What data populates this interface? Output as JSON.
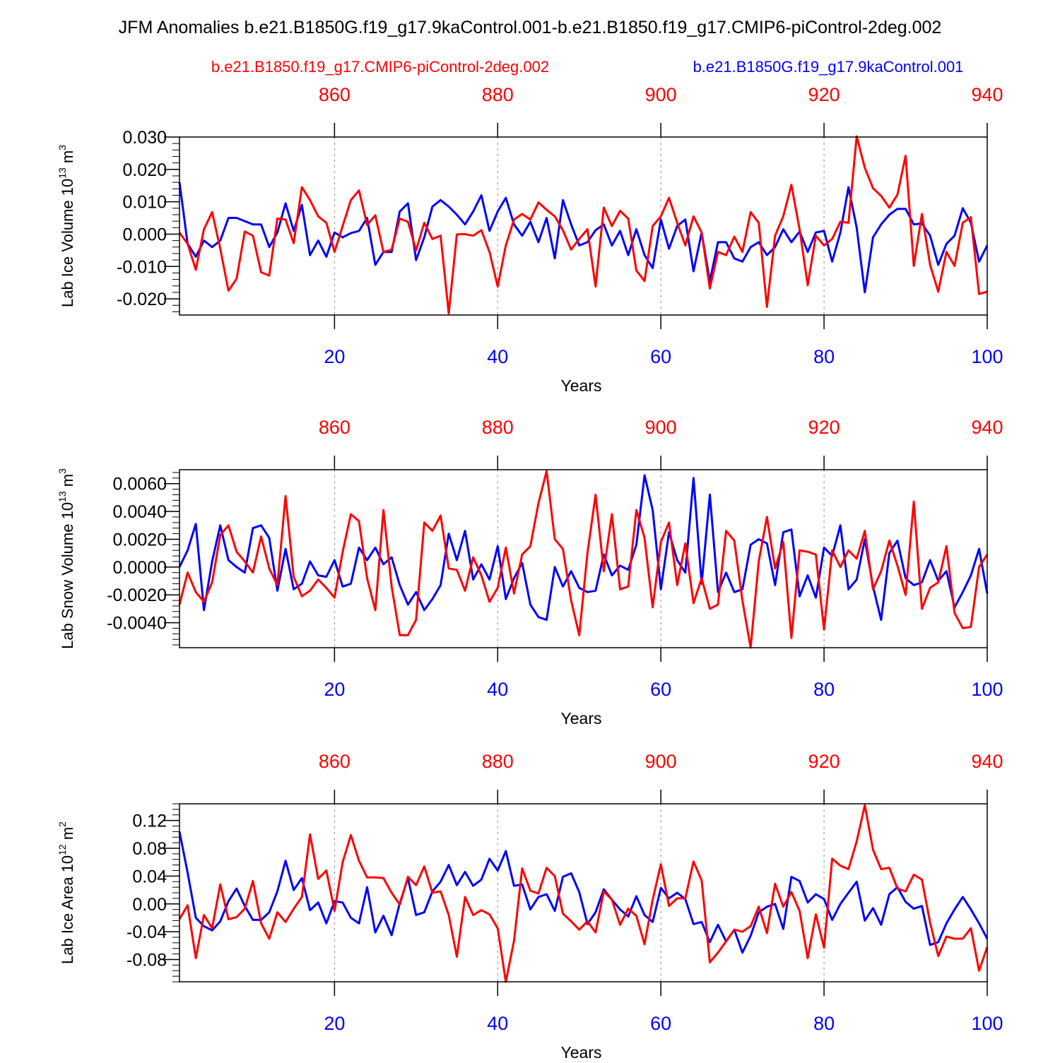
{
  "main_title": "JFM Anomalies b.e21.B1850G.f19_g17.9kaControl.001-b.e21.B1850.f19_g17.CMIP6-piControl-2deg.002",
  "legend": {
    "red_label": "b.e21.B1850.f19_g17.CMIP6-piControl-2deg.002",
    "blue_label": "b.e21.B1850G.f19_g17.9kaControl.001"
  },
  "colors": {
    "red": "#ff0000",
    "blue": "#0000ff",
    "axis": "#000000",
    "grid": "#888888"
  },
  "chart_data": [
    {
      "type": "line",
      "ylabel": "Lab Ice Volume 10",
      "ylabel_sup": "13",
      "ylabel_unit": " m",
      "ylabel_unit_sup": "3",
      "xlabel": "Years",
      "xlim": [
        1,
        100
      ],
      "ylim": [
        -0.025,
        0.03
      ],
      "yticks": [
        -0.02,
        -0.01,
        0.0,
        0.01,
        0.02,
        0.03
      ],
      "ytick_labels": [
        "-0.020",
        "-0.010",
        "0.000",
        "0.010",
        "0.020",
        "0.030"
      ],
      "xticks": [
        20,
        40,
        60,
        80,
        100
      ],
      "xtick_labels": [
        "20",
        "40",
        "60",
        "80",
        "100"
      ],
      "top_xticks": [
        860,
        880,
        900,
        920,
        940
      ],
      "top_xtick_labels": [
        "860",
        "880",
        "900",
        "920",
        "940"
      ],
      "series": [
        {
          "name": "b.e21.B1850G.f19_g17.9kaControl.001",
          "color": "blue",
          "values": [
            0.016,
            -0.003,
            -0.007,
            -0.002,
            -0.004,
            -0.002,
            0.005,
            0.005,
            0.004,
            0.003,
            0.003,
            -0.004,
            0.0005,
            0.0095,
            0.001,
            0.009,
            -0.0065,
            -0.002,
            -0.007,
            0.0005,
            -0.001,
            0.0003,
            0.001,
            0.005,
            -0.0095,
            -0.0055,
            -0.0055,
            0.007,
            0.0095,
            -0.008,
            -0.001,
            0.0085,
            0.0105,
            0.0085,
            0.006,
            0.003,
            0.007,
            0.012,
            0.001,
            0.007,
            0.0112,
            0.003,
            -0.0005,
            0.0038,
            -0.0025,
            0.005,
            -0.0075,
            0.0105,
            0.003,
            -0.0035,
            -0.0025,
            0.0012,
            0.003,
            -0.0035,
            0.001,
            -0.0065,
            0.0015,
            -0.0065,
            -0.0105,
            0.0045,
            -0.0045,
            0.0025,
            0.0045,
            -0.0115,
            0.0005,
            -0.0145,
            -0.0025,
            -0.0025,
            -0.0075,
            -0.0085,
            -0.004,
            -0.0025,
            -0.0065,
            -0.004,
            0.0015,
            -0.0025,
            0.0008,
            -0.0055,
            0.0005,
            0.001,
            -0.0085,
            0.0005,
            0.0145,
            0.002,
            -0.018,
            -0.001,
            0.003,
            0.006,
            0.0078,
            0.0078,
            0.003,
            0.0033,
            -0.0005,
            -0.0095,
            -0.003,
            -0.0005,
            0.008,
            0.0035,
            -0.0085,
            -0.0035
          ]
        },
        {
          "name": "b.e21.B1850.f19_g17.CMIP6-piControl-2deg.002",
          "color": "red",
          "values": [
            0.0005,
            -0.003,
            -0.011,
            0.0015,
            0.0068,
            -0.0045,
            -0.0175,
            -0.0138,
            0.0008,
            -0.0005,
            -0.0118,
            -0.0128,
            0.0048,
            0.0045,
            -0.0028,
            0.0145,
            0.0105,
            0.0055,
            0.0035,
            -0.0055,
            0.0025,
            0.0105,
            0.0135,
            0.0028,
            0.0058,
            -0.0055,
            -0.0048,
            0.0048,
            0.0038,
            -0.005,
            0.0035,
            -0.0015,
            -0.0005,
            -0.0245,
            -0.0001,
            0.0,
            -0.0005,
            0.0012,
            -0.0055,
            -0.0162,
            -0.0035,
            0.0045,
            0.0062,
            0.0045,
            0.0098,
            0.0075,
            0.0055,
            0.0012,
            -0.0048,
            -0.0015,
            0.0015,
            -0.0162,
            0.0082,
            0.0025,
            0.0072,
            0.0048,
            -0.0112,
            -0.0145,
            0.0025,
            0.0055,
            0.0112,
            0.0035,
            -0.0035,
            0.0055,
            0.0005,
            -0.0168,
            -0.0055,
            -0.0065,
            -0.0008,
            -0.0055,
            0.0068,
            0.0035,
            -0.0225,
            -0.0005,
            0.0055,
            0.0152,
            0.0015,
            -0.0158,
            -0.0005,
            -0.0035,
            -0.0015,
            0.0038,
            0.0035,
            0.0302,
            0.0205,
            0.0142,
            0.0118,
            0.0082,
            0.0122,
            0.0242,
            -0.0098,
            0.0062,
            -0.0095,
            -0.0178,
            -0.0055,
            -0.0098,
            0.0035,
            0.0052,
            -0.0185,
            -0.0178
          ]
        }
      ]
    },
    {
      "type": "line",
      "ylabel": "Lab Snow Volume 10",
      "ylabel_sup": "13",
      "ylabel_unit": " m",
      "ylabel_unit_sup": "3",
      "xlabel": "Years",
      "xlim": [
        1,
        100
      ],
      "ylim": [
        -0.0058,
        0.007
      ],
      "yticks": [
        -0.004,
        -0.002,
        0.0,
        0.002,
        0.004,
        0.006
      ],
      "ytick_labels": [
        "-0.0040",
        "-0.0020",
        "0.0000",
        "0.0020",
        "0.0040",
        "0.0060"
      ],
      "xticks": [
        20,
        40,
        60,
        80,
        100
      ],
      "xtick_labels": [
        "20",
        "40",
        "60",
        "80",
        "100"
      ],
      "top_xticks": [
        860,
        880,
        900,
        920,
        940
      ],
      "top_xtick_labels": [
        "860",
        "880",
        "900",
        "920",
        "940"
      ],
      "series": [
        {
          "name": "b.e21.B1850G.f19_g17.9kaControl.001",
          "color": "blue",
          "values": [
            0.0,
            0.0012,
            0.0031,
            -0.0031,
            0.0004,
            0.003,
            0.0005,
            0.0,
            -0.0004,
            0.0028,
            0.003,
            0.0021,
            -0.0017,
            0.0013,
            -0.0016,
            -0.0012,
            0.0004,
            -0.0006,
            -0.0007,
            0.0005,
            -0.0014,
            -0.0012,
            0.0014,
            0.0005,
            0.0014,
            0.0002,
            0.0007,
            -0.0013,
            -0.0027,
            -0.0018,
            -0.0031,
            -0.0023,
            -0.0013,
            0.0024,
            0.0005,
            0.0026,
            -0.0009,
            0.0002,
            -0.0009,
            0.0015,
            -0.0023,
            -0.0008,
            0.0003,
            -0.0027,
            -0.0036,
            -0.0038,
            0.0,
            -0.0014,
            -0.0003,
            -0.0015,
            -0.0018,
            -0.0017,
            0.0009,
            -0.0006,
            0.0001,
            -0.0002,
            0.0016,
            0.0066,
            0.0041,
            -0.0016,
            0.0025,
            0.0005,
            -0.0004,
            0.0064,
            -0.0012,
            0.0052,
            -0.0018,
            -0.0004,
            -0.0018,
            -0.0016,
            0.0016,
            0.002,
            0.0017,
            -0.0013,
            0.0025,
            0.0027,
            -0.0021,
            -0.0006,
            -0.0022,
            0.0014,
            0.0008,
            0.003,
            -0.0016,
            -0.0009,
            0.002,
            -0.0014,
            -0.0038,
            0.001,
            0.0019,
            -0.0008,
            -0.0013,
            -0.0011,
            0.0005,
            -0.001,
            -0.0003,
            -0.0029,
            -0.0018,
            -0.0006,
            0.0013,
            -0.0019
          ]
        },
        {
          "name": "b.e21.B1850.f19_g17.CMIP6-piControl-2deg.002",
          "color": "red",
          "values": [
            -0.0027,
            -0.0004,
            -0.0018,
            -0.0025,
            -0.0011,
            0.0023,
            0.003,
            0.0011,
            0.0004,
            -0.0004,
            0.0022,
            -0.0001,
            -0.0013,
            0.0051,
            -0.0007,
            -0.0021,
            -0.0017,
            -0.0009,
            -0.0015,
            -0.0022,
            0.0011,
            0.0038,
            0.0033,
            -0.0008,
            -0.0031,
            0.0041,
            -0.0014,
            -0.0049,
            -0.0049,
            -0.0038,
            0.0032,
            0.0026,
            0.0037,
            -0.0001,
            -0.0002,
            -0.0017,
            0.0007,
            -0.0006,
            -0.0025,
            -0.0015,
            0.0014,
            -0.0019,
            0.0009,
            0.0015,
            0.0046,
            0.0069,
            0.002,
            0.0013,
            -0.0024,
            -0.0049,
            0.001,
            0.0052,
            -0.0003,
            0.0038,
            -0.0016,
            -0.0014,
            0.0041,
            0.0021,
            -0.0029,
            0.0018,
            0.0032,
            -0.0013,
            0.0017,
            -0.0026,
            -0.0008,
            -0.003,
            -0.0027,
            0.0026,
            0.0019,
            -0.0024,
            -0.0058,
            0.0004,
            0.0036,
            -0.0001,
            0.0018,
            -0.0051,
            0.0012,
            0.0011,
            0.0009,
            -0.0045,
            0.0012,
            0.0,
            0.0012,
            0.0006,
            0.0026,
            -0.0016,
            -0.0003,
            0.0019,
            0.0001,
            -0.002,
            0.0047,
            -0.003,
            -0.0015,
            -0.0011,
            0.0015,
            -0.0033,
            -0.0044,
            -0.0043,
            0.0,
            0.0009
          ]
        }
      ]
    },
    {
      "type": "line",
      "ylabel": "Lab Ice Area 10",
      "ylabel_sup": "12",
      "ylabel_unit": " m",
      "ylabel_unit_sup": "2",
      "xlabel": "Years",
      "xlim": [
        1,
        100
      ],
      "ylim": [
        -0.112,
        0.144
      ],
      "yticks": [
        -0.08,
        -0.04,
        0.0,
        0.04,
        0.08,
        0.12
      ],
      "ytick_labels": [
        "-0.08",
        "-0.04",
        "0.00",
        "0.04",
        "0.08",
        "0.12"
      ],
      "xticks": [
        20,
        40,
        60,
        80,
        100
      ],
      "xtick_labels": [
        "20",
        "40",
        "60",
        "80",
        "100"
      ],
      "top_xticks": [
        860,
        880,
        900,
        920,
        940
      ],
      "top_xtick_labels": [
        "860",
        "880",
        "900",
        "920",
        "940"
      ],
      "series": [
        {
          "name": "b.e21.B1850G.f19_g17.9kaControl.001",
          "color": "blue",
          "values": [
            0.104,
            0.045,
            -0.02,
            -0.032,
            -0.038,
            -0.025,
            0.004,
            0.022,
            -0.003,
            -0.023,
            -0.023,
            -0.012,
            0.018,
            0.062,
            0.02,
            0.037,
            -0.009,
            0.002,
            -0.028,
            0.004,
            0.002,
            -0.02,
            -0.028,
            0.024,
            -0.041,
            -0.017,
            -0.045,
            0.001,
            0.037,
            -0.016,
            -0.012,
            0.018,
            0.032,
            0.056,
            0.027,
            0.046,
            0.026,
            0.035,
            0.065,
            0.048,
            0.076,
            0.026,
            0.028,
            -0.008,
            0.01,
            0.014,
            -0.01,
            0.039,
            0.044,
            0.017,
            -0.029,
            -0.012,
            0.021,
            0.006,
            -0.008,
            -0.018,
            0.011,
            -0.016,
            -0.026,
            0.023,
            0.008,
            0.016,
            0.007,
            -0.029,
            -0.026,
            -0.055,
            -0.03,
            -0.054,
            -0.037,
            -0.07,
            -0.046,
            -0.012,
            -0.004,
            0.0,
            -0.036,
            0.039,
            0.033,
            0.002,
            0.014,
            0.007,
            -0.023,
            0.0,
            0.016,
            0.032,
            -0.024,
            -0.006,
            -0.03,
            0.014,
            0.024,
            0.003,
            -0.007,
            -0.003,
            -0.059,
            -0.055,
            -0.028,
            -0.008,
            0.01,
            -0.008,
            -0.028,
            -0.05
          ]
        },
        {
          "name": "b.e21.B1850.f19_g17.CMIP6-piControl-2deg.002",
          "color": "red",
          "values": [
            -0.022,
            -0.002,
            -0.078,
            -0.016,
            -0.035,
            0.028,
            -0.022,
            -0.019,
            -0.007,
            0.033,
            -0.028,
            -0.05,
            -0.012,
            -0.026,
            -0.007,
            0.01,
            0.1,
            0.036,
            0.048,
            -0.01,
            0.06,
            0.099,
            0.062,
            0.038,
            0.038,
            0.037,
            0.016,
            -0.001,
            0.039,
            0.027,
            0.054,
            0.016,
            0.018,
            -0.016,
            -0.076,
            0.01,
            -0.016,
            -0.009,
            -0.015,
            -0.035,
            -0.112,
            -0.053,
            0.051,
            0.019,
            0.015,
            0.052,
            0.04,
            -0.014,
            -0.025,
            -0.037,
            -0.025,
            -0.041,
            0.018,
            0.006,
            -0.03,
            -0.007,
            -0.017,
            -0.058,
            0.006,
            0.057,
            -0.003,
            0.008,
            0.008,
            0.061,
            0.034,
            -0.084,
            -0.07,
            -0.054,
            -0.037,
            -0.04,
            -0.032,
            -0.004,
            -0.042,
            0.029,
            -0.004,
            0.017,
            -0.01,
            -0.078,
            -0.015,
            -0.063,
            0.065,
            0.055,
            0.05,
            0.09,
            0.142,
            0.078,
            0.05,
            0.052,
            0.022,
            0.018,
            0.042,
            0.035,
            -0.027,
            -0.075,
            -0.047,
            -0.05,
            -0.05,
            -0.035,
            -0.096,
            -0.062
          ]
        }
      ]
    }
  ]
}
